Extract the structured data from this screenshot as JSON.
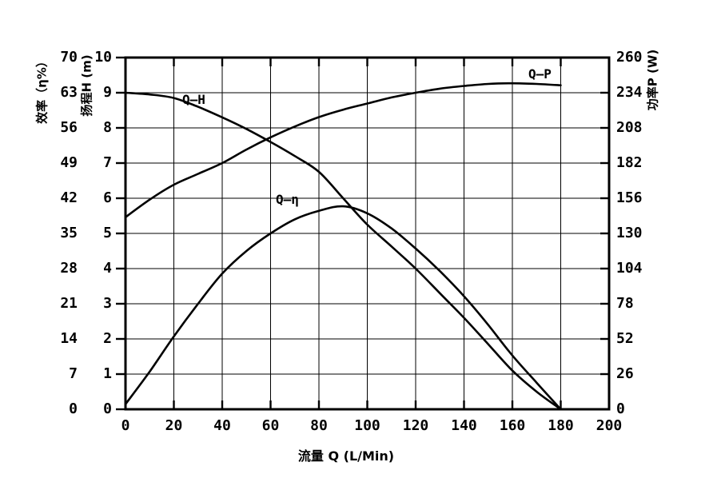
{
  "chart_data": {
    "type": "line",
    "title": "",
    "grid": true,
    "legend_position": "labels-on-curves",
    "axes": {
      "x": {
        "label": "流量 Q (L/Min)",
        "min": 0,
        "max": 200,
        "ticks": [
          0,
          20,
          40,
          60,
          80,
          100,
          120,
          140,
          160,
          180,
          200
        ]
      },
      "y_eta": {
        "label": "效率（η%）",
        "min": 0,
        "max": 70,
        "ticks": [
          0,
          7,
          14,
          21,
          28,
          35,
          42,
          49,
          56,
          63,
          70
        ]
      },
      "y_h": {
        "label": "扬程H (m)",
        "min": 0,
        "max": 10,
        "ticks": [
          0,
          1,
          2,
          3,
          4,
          5,
          6,
          7,
          8,
          9,
          10
        ]
      },
      "y_p": {
        "label": "功率P (W)",
        "min": 0,
        "max": 260,
        "ticks": [
          0,
          26,
          52,
          78,
          104,
          130,
          156,
          182,
          208,
          234,
          260
        ]
      }
    },
    "series": [
      {
        "name": "Q-H",
        "label": "Q—H",
        "axis": "y_h",
        "points": [
          [
            0,
            9.0
          ],
          [
            10,
            8.95
          ],
          [
            20,
            8.85
          ],
          [
            30,
            8.6
          ],
          [
            40,
            8.3
          ],
          [
            50,
            7.97
          ],
          [
            60,
            7.6
          ],
          [
            70,
            7.2
          ],
          [
            80,
            6.75
          ],
          [
            90,
            6.0
          ],
          [
            100,
            5.25
          ],
          [
            110,
            4.63
          ],
          [
            120,
            4.0
          ],
          [
            130,
            3.3
          ],
          [
            140,
            2.6
          ],
          [
            150,
            1.85
          ],
          [
            160,
            1.1
          ],
          [
            170,
            0.5
          ],
          [
            180,
            0
          ]
        ]
      },
      {
        "name": "Q-eta",
        "label": "Q—η",
        "axis": "y_eta",
        "points": [
          [
            0,
            1
          ],
          [
            10,
            7.5
          ],
          [
            20,
            14.5
          ],
          [
            30,
            21
          ],
          [
            40,
            27
          ],
          [
            50,
            31.5
          ],
          [
            60,
            35
          ],
          [
            70,
            37.8
          ],
          [
            80,
            39.5
          ],
          [
            90,
            40.4
          ],
          [
            100,
            39
          ],
          [
            110,
            36
          ],
          [
            120,
            32
          ],
          [
            130,
            27.5
          ],
          [
            140,
            22.5
          ],
          [
            150,
            16.8
          ],
          [
            160,
            10.7
          ],
          [
            170,
            5.3
          ],
          [
            180,
            0
          ]
        ]
      },
      {
        "name": "Q-P",
        "label": "Q—P",
        "axis": "y_p",
        "points": [
          [
            0,
            142
          ],
          [
            10,
            155
          ],
          [
            20,
            166
          ],
          [
            30,
            174
          ],
          [
            40,
            182
          ],
          [
            50,
            192
          ],
          [
            60,
            201
          ],
          [
            70,
            209
          ],
          [
            80,
            216
          ],
          [
            90,
            221.5
          ],
          [
            100,
            226
          ],
          [
            110,
            230.5
          ],
          [
            120,
            234
          ],
          [
            130,
            237
          ],
          [
            140,
            239
          ],
          [
            150,
            240.5
          ],
          [
            160,
            241
          ],
          [
            170,
            240.5
          ],
          [
            180,
            239.5
          ]
        ]
      }
    ],
    "colors": {
      "line": "#000000",
      "grid": "#000000",
      "frame": "#000000",
      "background": "#ffffff"
    }
  }
}
